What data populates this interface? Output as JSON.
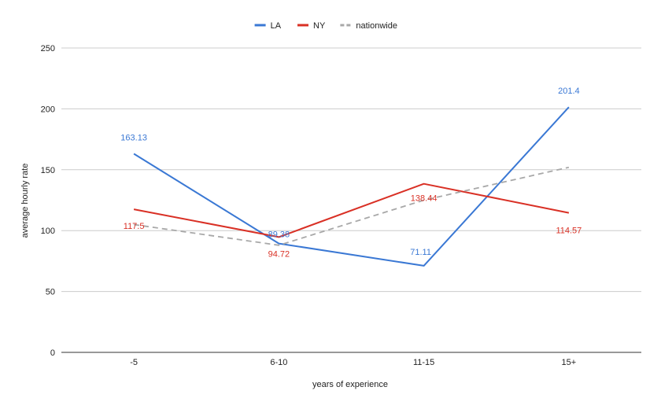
{
  "chart_data": {
    "type": "line",
    "categories": [
      "-5",
      "6-10",
      "11-15",
      "15+"
    ],
    "series": [
      {
        "name": "LA",
        "values": [
          163.13,
          89.38,
          71.11,
          201.4
        ],
        "color": "#3a78d4",
        "style": "solid",
        "labels": [
          "163.13",
          "89.38",
          "71.11",
          "201.4"
        ]
      },
      {
        "name": "NY",
        "values": [
          117.5,
          94.72,
          138.44,
          114.57
        ],
        "color": "#d93025",
        "style": "solid",
        "labels": [
          "117.5",
          "94.72",
          "138.44",
          "114.57"
        ]
      },
      {
        "name": "nationwide",
        "values": [
          105,
          88,
          125,
          152
        ],
        "color": "#a8a8a8",
        "style": "dashed",
        "labels": []
      }
    ],
    "title": "",
    "xlabel": "years of experience",
    "ylabel": "average hourly rate",
    "ylim": [
      0,
      250
    ],
    "yticks": [
      0,
      50,
      100,
      150,
      200,
      250
    ],
    "grid": true,
    "legend_position": "top-center"
  }
}
